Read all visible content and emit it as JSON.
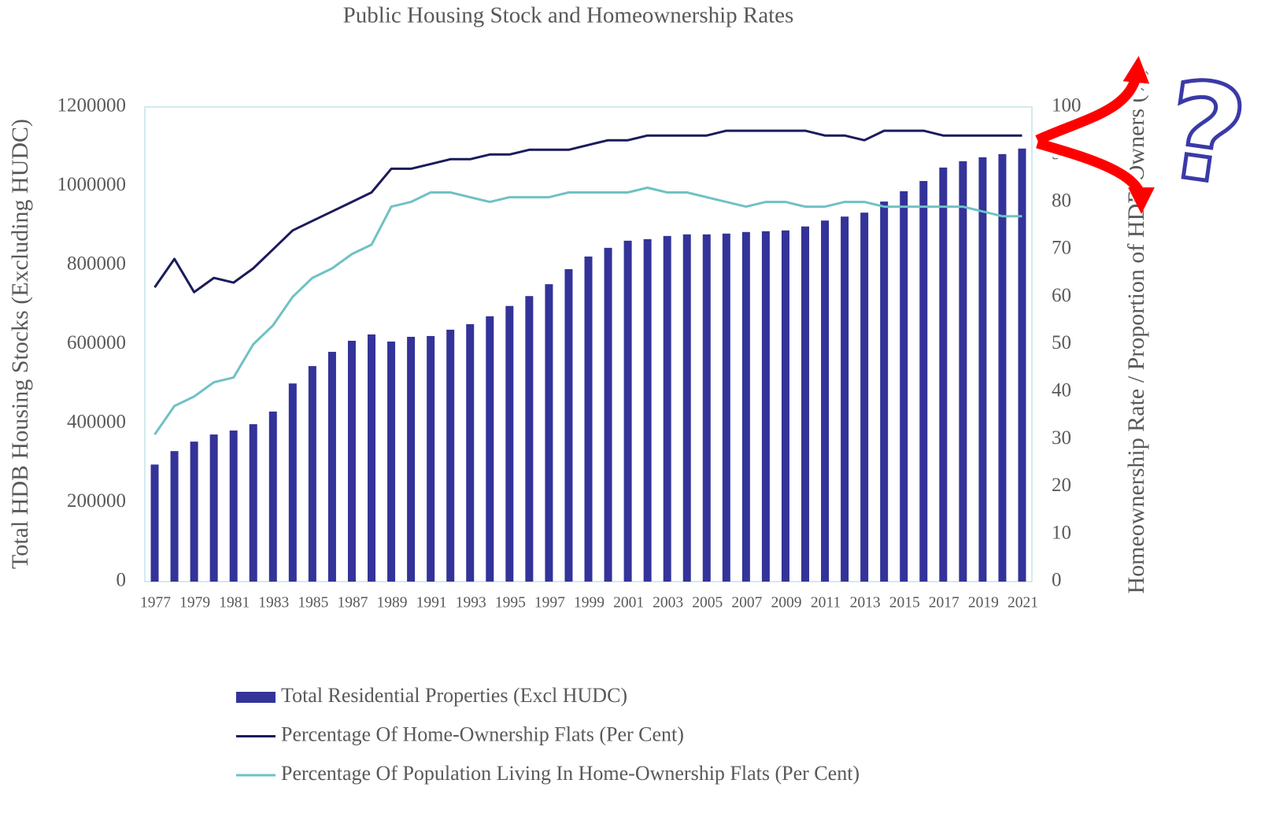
{
  "chart_data": {
    "type": "bar",
    "title": "Public Housing Stock and Homeownership Rates",
    "y_label": "Total HDB Housing Stocks (Excluding HUDC)",
    "y2_label": "Homeownership Rate / Proportion of HDB Owners (%)",
    "annotation": "?",
    "categories": [
      "1977",
      null,
      "1979",
      null,
      "1981",
      null,
      "1983",
      null,
      "1985",
      null,
      "1987",
      null,
      "1989",
      null,
      "1991",
      null,
      "1993",
      null,
      "1995",
      null,
      "1997",
      null,
      "1999",
      null,
      "2001",
      null,
      "2003",
      null,
      "2005",
      null,
      "2007",
      null,
      "2009",
      null,
      "2011",
      null,
      "2013",
      null,
      "2015",
      null,
      "2017",
      null,
      "2019",
      null,
      "2021"
    ],
    "series": [
      {
        "name": "Total Residential Properties (Excl HUDC)",
        "type": "bar",
        "color": "#333399",
        "values": [
          296000,
          330000,
          354000,
          372000,
          382000,
          398000,
          430000,
          501000,
          545000,
          581000,
          609000,
          625000,
          607000,
          619000,
          621000,
          637000,
          651000,
          671000,
          697000,
          722000,
          752000,
          790000,
          822000,
          844000,
          862000,
          866000,
          874000,
          878000,
          878000,
          880000,
          884000,
          886000,
          888000,
          898000,
          913000,
          923000,
          933000,
          961000,
          987000,
          1013000,
          1047000,
          1063000,
          1073000,
          1081000,
          1095000
        ]
      },
      {
        "name": "Percentage Of Home-Ownership Flats (Per Cent)",
        "type": "line",
        "axis": "y2",
        "color": "#1b1b5c",
        "values": [
          62,
          68,
          61,
          64,
          63,
          66,
          70,
          74,
          76,
          78,
          80,
          82,
          87,
          87,
          88,
          89,
          89,
          90,
          90,
          91,
          91,
          91,
          92,
          93,
          93,
          94,
          94,
          94,
          94,
          95,
          95,
          95,
          95,
          95,
          94,
          94,
          93,
          95,
          95,
          95,
          94,
          94,
          94,
          94,
          94
        ]
      },
      {
        "name": "Percentage Of Population Living In Home-Ownership Flats (Per Cent)",
        "type": "line",
        "axis": "y2",
        "color": "#70c1c4",
        "values": [
          31,
          37,
          39,
          42,
          43,
          50,
          54,
          60,
          64,
          66,
          69,
          71,
          79,
          80,
          82,
          82,
          81,
          80,
          81,
          81,
          81,
          82,
          82,
          82,
          82,
          83,
          82,
          82,
          81,
          80,
          79,
          80,
          80,
          79,
          79,
          80,
          80,
          79,
          79,
          79,
          79,
          79,
          78,
          77,
          77
        ]
      }
    ],
    "ylim": [
      0,
      1200000
    ],
    "yticks": [
      0,
      200000,
      400000,
      600000,
      800000,
      1000000,
      1200000
    ],
    "y2lim": [
      0,
      100
    ],
    "y2ticks": [
      0,
      10,
      20,
      30,
      40,
      50,
      60,
      70,
      80,
      90,
      100
    ],
    "grid": false
  }
}
